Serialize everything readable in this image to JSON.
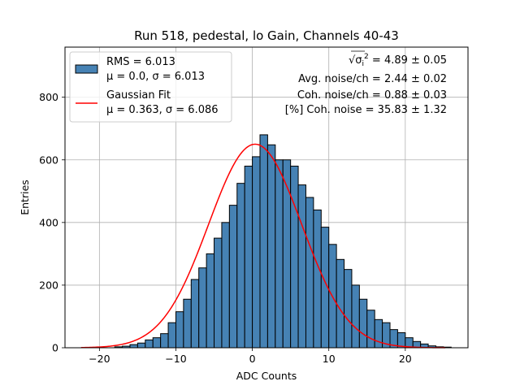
{
  "chart_data": {
    "type": "bar",
    "title": "Run 518, pedestal, lo Gain, Channels 40-43",
    "xlabel": "ADC Counts",
    "ylabel": "Entries",
    "xlim": [
      -24.5,
      28.2
    ],
    "ylim": [
      0,
      960
    ],
    "x_ticks": [
      -20,
      -10,
      0,
      10,
      20
    ],
    "y_ticks": [
      0,
      200,
      400,
      600,
      800
    ],
    "grid": true,
    "legend_position": "top-left",
    "colors": {
      "histogram": "#4682b4",
      "edge": "#000000",
      "fit": "#ff0000",
      "grid": "#b0b0b0"
    },
    "series": [
      {
        "name": "RMS = 6.013",
        "name_line2": "μ = 0.0, σ = 6.013",
        "kind": "histogram",
        "bin_start": -22,
        "bin_width": 1,
        "counts": [
          0,
          0,
          0,
          0,
          3,
          5,
          10,
          15,
          25,
          32,
          45,
          80,
          115,
          155,
          218,
          255,
          300,
          350,
          400,
          455,
          525,
          580,
          610,
          680,
          648,
          600,
          600,
          580,
          520,
          480,
          440,
          385,
          330,
          282,
          250,
          200,
          155,
          120,
          90,
          80,
          58,
          48,
          32,
          20,
          12,
          6,
          3,
          2
        ]
      },
      {
        "name": "Gaussian Fit",
        "name_line2": "μ = 0.363, σ = 6.086",
        "kind": "line",
        "mu": 0.363,
        "sigma": 6.086,
        "amplitude": 650,
        "x_range": [
          -22.4,
          25.2
        ]
      }
    ],
    "annotations": [
      {
        "prefix": "√σ",
        "sub": "i",
        "sup": "2",
        "value": " = 4.89 ± 0.05"
      },
      {
        "text": "Avg. noise/ch = 2.44 ± 0.02"
      },
      {
        "text": "Coh. noise/ch = 0.88 ± 0.03"
      },
      {
        "text": "[%] Coh. noise = 35.83 ± 1.32"
      }
    ]
  }
}
